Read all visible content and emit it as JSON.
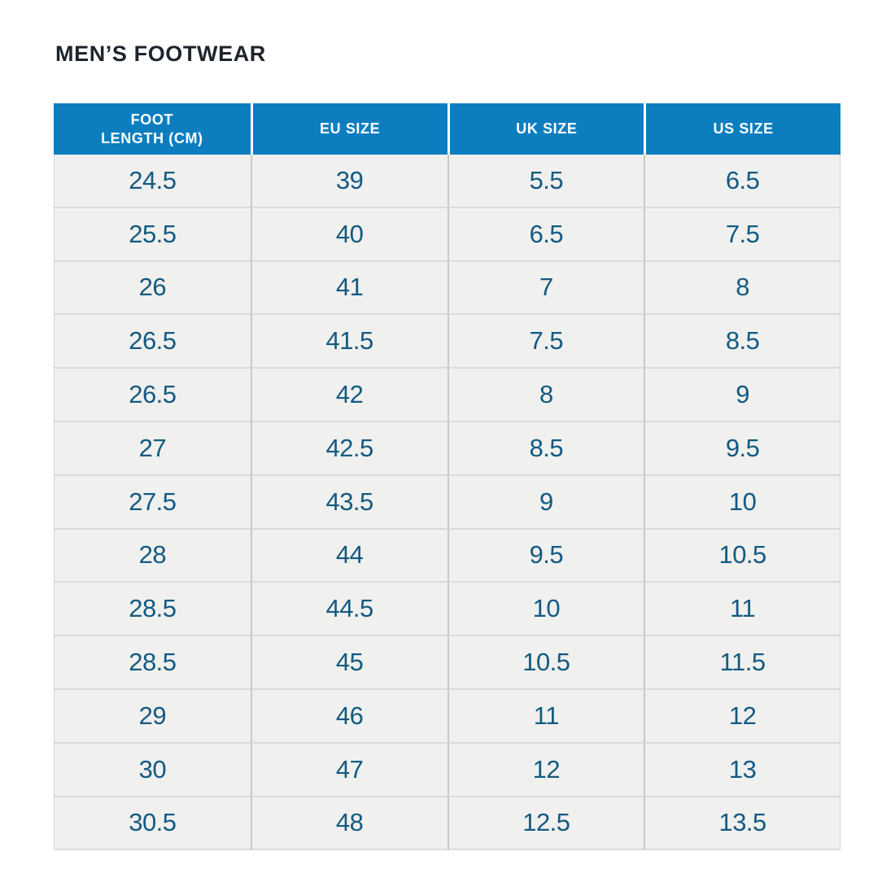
{
  "page": {
    "title": "MEN’S FOOTWEAR"
  },
  "table": {
    "columns": [
      "FOOT\nLENGTH (CM)",
      "EU SIZE",
      "UK SIZE",
      "US SIZE"
    ],
    "rows": [
      [
        "24.5",
        "39",
        "5.5",
        "6.5"
      ],
      [
        "25.5",
        "40",
        "6.5",
        "7.5"
      ],
      [
        "26",
        "41",
        "7",
        "8"
      ],
      [
        "26.5",
        "41.5",
        "7.5",
        "8.5"
      ],
      [
        "26.5",
        "42",
        "8",
        "9"
      ],
      [
        "27",
        "42.5",
        "8.5",
        "9.5"
      ],
      [
        "27.5",
        "43.5",
        "9",
        "10"
      ],
      [
        "28",
        "44",
        "9.5",
        "10.5"
      ],
      [
        "28.5",
        "44.5",
        "10",
        "11"
      ],
      [
        "28.5",
        "45",
        "10.5",
        "11.5"
      ],
      [
        "29",
        "46",
        "11",
        "12"
      ],
      [
        "30",
        "47",
        "12",
        "13"
      ],
      [
        "30.5",
        "48",
        "12.5",
        "13.5"
      ]
    ]
  },
  "colors": {
    "header_background": "#0c7ec0",
    "header_text": "#ffffff",
    "cell_background": "#f0f0ee",
    "cell_text": "#125a82",
    "title_text": "#1d242c",
    "row_divider": "#dbdbda",
    "column_divider": "#c9c8c7"
  }
}
